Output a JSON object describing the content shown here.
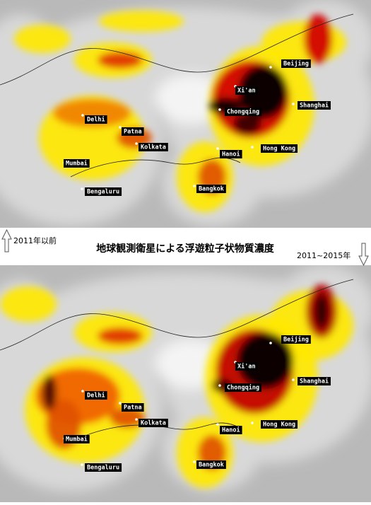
{
  "title": "地球観測衛星による浮遊粒子状物質濃度",
  "top_map": {
    "label": "2011年以前",
    "cities": [
      "Beijing",
      "Xi'an",
      "Chongqing",
      "Shanghai",
      "Delhi",
      "Patna",
      "Kolkata",
      "Mumbai",
      "Hanoi",
      "Hong Kong",
      "Bengaluru",
      "Bangkok"
    ]
  },
  "bottom_map": {
    "label": "2011~2015年",
    "cities": [
      "Beijing",
      "Xi'an",
      "Chongqing",
      "Shanghai",
      "Delhi",
      "Patna",
      "Kolkata",
      "Mumbai",
      "Hanoi",
      "Hong Kong",
      "Bengaluru",
      "Bangkok"
    ]
  }
}
